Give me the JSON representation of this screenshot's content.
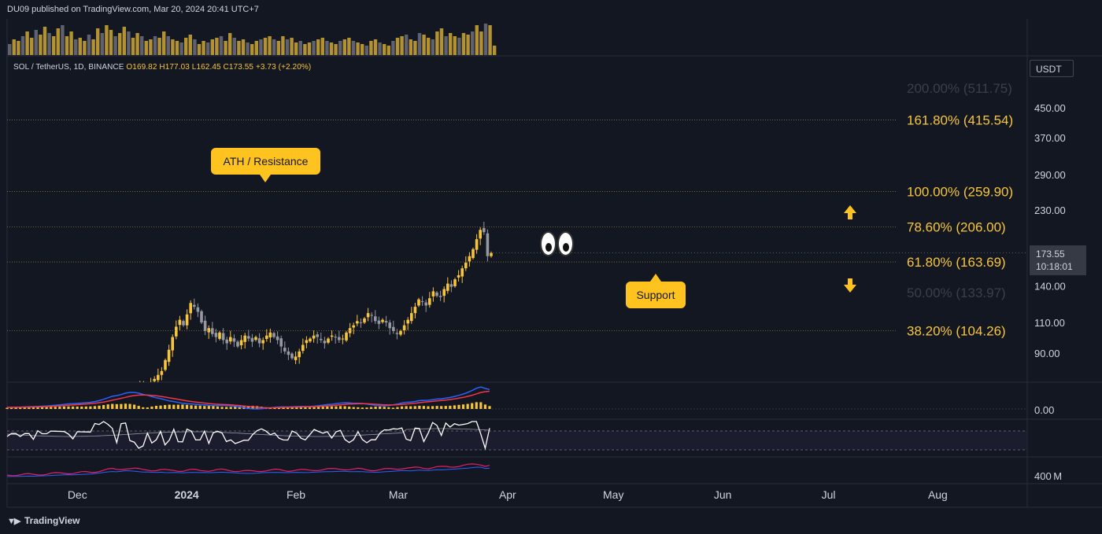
{
  "header": {
    "published_line": "DU09 published on TradingView.com, Mar 20, 2024 20:41 UTC+7"
  },
  "symbol_line": {
    "name": "SOL / TetherUS, 1D, BINANCE",
    "open": "O169.82",
    "high": "H177.03",
    "low": "L162.45",
    "close": "C173.55",
    "change": "+3.73 (+2.20%)"
  },
  "currency_button": "USDT",
  "last_price": {
    "price": "173.55",
    "countdown": "10:18:01"
  },
  "price_axis_labels": [
    "450.00",
    "370.00",
    "290.00",
    "230.00",
    "140.00",
    "110.00",
    "90.00"
  ],
  "macd_axis_label": "0.00",
  "volume_axis_label": "400 M",
  "time_axis_labels": [
    "Dec",
    "2024",
    "Feb",
    "Mar",
    "Apr",
    "May",
    "Jun",
    "Jul",
    "Aug"
  ],
  "fib_levels": [
    {
      "label": "200.00% (511.75)",
      "value": 511.75,
      "dim": true,
      "line": false
    },
    {
      "label": "161.80% (415.54)",
      "value": 415.54,
      "dim": false,
      "line": true
    },
    {
      "label": "100.00% (259.90)",
      "value": 259.9,
      "dim": false,
      "line": true
    },
    {
      "label": "78.60% (206.00)",
      "value": 206.0,
      "dim": false,
      "line": true
    },
    {
      "label": "61.80% (163.69)",
      "value": 163.69,
      "dim": false,
      "line": true
    },
    {
      "label": "50.00% (133.97)",
      "value": 133.97,
      "dim": true,
      "line": false
    },
    {
      "label": "38.20% (104.26)",
      "value": 104.26,
      "dim": false,
      "line": true
    }
  ],
  "annotations": {
    "resistance": "ATH / Resistance",
    "support": "Support"
  },
  "branding": "TradingView",
  "colors": {
    "background": "#131722",
    "up_candle": "#f7c53b",
    "down_candle": "#9598a1",
    "fib_text": "#f7c53b",
    "callout": "#ffc31f",
    "macd_line": "#2962ff",
    "signal_line": "#f23645"
  },
  "chart_data": {
    "type": "candlestick",
    "title": "SOL / TetherUS, 1D, BINANCE",
    "scale": "log",
    "ylim": [
      70,
      560
    ],
    "x_start": "2023-11-20",
    "x_end": "2024-03-20",
    "last": {
      "open": 169.82,
      "high": 177.03,
      "low": 162.45,
      "close": 173.55
    },
    "closes": [
      57,
      58,
      59,
      59,
      60,
      61,
      60,
      62,
      63,
      64,
      66,
      68,
      70,
      72,
      73,
      72,
      74,
      76,
      78,
      80,
      86,
      92,
      100,
      107,
      112,
      108,
      116,
      125,
      122,
      118,
      110,
      104,
      106,
      102,
      100,
      103,
      98,
      96,
      100,
      97,
      94,
      98,
      101,
      99,
      97,
      100,
      96,
      98,
      101,
      103,
      100,
      98,
      94,
      91,
      89,
      87,
      88,
      91,
      95,
      98,
      99,
      101,
      100,
      98,
      96,
      99,
      101,
      100,
      98,
      99,
      103,
      106,
      108,
      111,
      110,
      113,
      117,
      115,
      111,
      109,
      112,
      110,
      106,
      104,
      102,
      104,
      108,
      112,
      117,
      122,
      128,
      126,
      123,
      129,
      135,
      131,
      130,
      137,
      142,
      139,
      146,
      150,
      157,
      163,
      170,
      178,
      190,
      202,
      199,
      170,
      173.55
    ],
    "volume": [
      0.35,
      0.5,
      0.45,
      0.6,
      0.75,
      0.55,
      0.8,
      0.65,
      0.9,
      0.7,
      0.6,
      0.85,
      0.95,
      0.6,
      0.75,
      0.5,
      0.55,
      0.45,
      0.65,
      0.5,
      0.85,
      0.7,
      0.95,
      0.8,
      0.6,
      0.7,
      0.9,
      0.75,
      0.55,
      0.7,
      0.6,
      0.45,
      0.5,
      0.6,
      0.55,
      0.75,
      0.6,
      0.5,
      0.45,
      0.4,
      0.55,
      0.65,
      0.5,
      0.35,
      0.45,
      0.4,
      0.5,
      0.55,
      0.6,
      0.45,
      0.7,
      0.55,
      0.45,
      0.5,
      0.4,
      0.35,
      0.45,
      0.5,
      0.55,
      0.6,
      0.5,
      0.45,
      0.6,
      0.5,
      0.55,
      0.4,
      0.45,
      0.35,
      0.4,
      0.45,
      0.5,
      0.55,
      0.45,
      0.4,
      0.35,
      0.45,
      0.5,
      0.55,
      0.45,
      0.4,
      0.35,
      0.3,
      0.45,
      0.5,
      0.4,
      0.35,
      0.3,
      0.45,
      0.55,
      0.6,
      0.65,
      0.5,
      0.45,
      0.7,
      0.65,
      0.55,
      0.5,
      0.75,
      0.85,
      0.6,
      0.7,
      0.6,
      0.55,
      0.7,
      0.65,
      0.75,
      0.95,
      0.75,
      1.0,
      0.95,
      0.3
    ]
  }
}
